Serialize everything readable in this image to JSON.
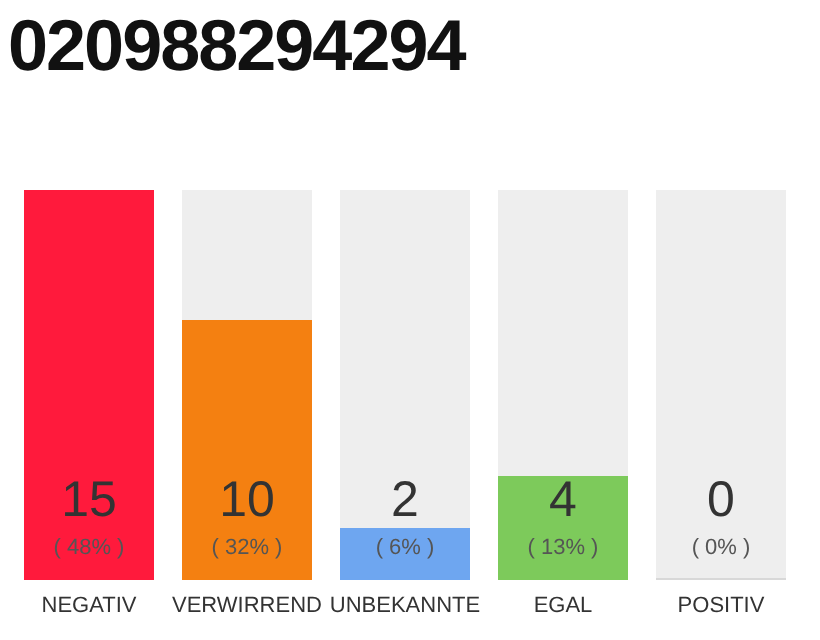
{
  "chart_data": {
    "type": "bar",
    "title": "020988294294",
    "categories": [
      "NEGATIV",
      "VERWIRREND",
      "UNBEKANNTE",
      "EGAL",
      "POSITIV"
    ],
    "values": [
      15,
      10,
      2,
      4,
      0
    ],
    "colors": [
      "#ff1a3c",
      "#f48011",
      "#6ea6f0",
      "#7dca5b",
      "#d8d8d8"
    ],
    "data_labels": true,
    "annotations": [
      "( 48% )",
      "( 32% )",
      "( 6% )",
      "( 13% )",
      "( 0% )"
    ]
  }
}
